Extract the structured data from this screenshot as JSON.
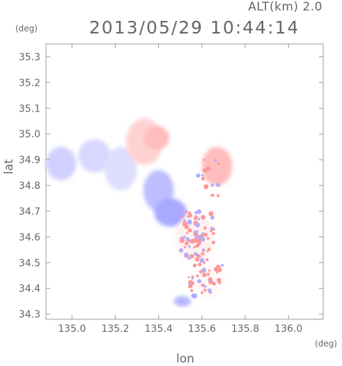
{
  "header": {
    "altitude_label": "ALT(km) 2.0",
    "datetime": "2013/05/29 10:44:14"
  },
  "axes": {
    "x_unit": "(deg)",
    "y_unit": "(deg)",
    "x_label": "lon",
    "y_label": "lat"
  },
  "chart_data": {
    "type": "heatmap",
    "title": "2013/05/29 10:44:14",
    "subtitle": "ALT(km) 2.0",
    "xlabel": "lon",
    "ylabel": "lat",
    "x_unit": "(deg)",
    "y_unit": "(deg)",
    "xlim": [
      134.88,
      136.16
    ],
    "ylim": [
      34.28,
      35.35
    ],
    "x_ticks": [
      135.0,
      135.2,
      135.4,
      135.6,
      135.8,
      136.0
    ],
    "x_tick_labels": [
      "135.0",
      "135.2",
      "135.4",
      "135.6",
      "135.8",
      "136.0"
    ],
    "y_ticks": [
      34.3,
      34.4,
      34.5,
      34.6,
      34.7,
      34.8,
      34.9,
      35.0,
      35.1,
      35.2,
      35.3
    ],
    "y_tick_labels": [
      "34.3",
      "34.4",
      "34.5",
      "34.6",
      "34.7",
      "34.8",
      "34.9",
      "35.0",
      "35.1",
      "35.2",
      "35.3"
    ],
    "colormap": {
      "negative": "#7a7aff",
      "zero": "#ffffff",
      "positive": "#ff6a6a"
    },
    "regions": [
      {
        "lon": [
          134.88,
          135.02
        ],
        "lat": [
          34.82,
          34.95
        ],
        "value": -0.35
      },
      {
        "lon": [
          135.03,
          135.18
        ],
        "lat": [
          34.85,
          34.98
        ],
        "value": -0.3
      },
      {
        "lon": [
          135.15,
          135.3
        ],
        "lat": [
          34.78,
          34.95
        ],
        "value": -0.25
      },
      {
        "lon": [
          135.25,
          135.42
        ],
        "lat": [
          34.88,
          35.06
        ],
        "value": 0.3
      },
      {
        "lon": [
          135.33,
          135.45
        ],
        "lat": [
          34.94,
          35.03
        ],
        "value": 0.45
      },
      {
        "lon": [
          135.33,
          135.47
        ],
        "lat": [
          34.7,
          34.86
        ],
        "value": -0.5
      },
      {
        "lon": [
          135.38,
          135.53
        ],
        "lat": [
          34.64,
          34.75
        ],
        "value": -0.65
      },
      {
        "lon": [
          135.6,
          135.74
        ],
        "lat": [
          34.8,
          34.95
        ],
        "value": 0.45
      },
      {
        "lon": [
          135.48,
          135.65
        ],
        "lat": [
          34.5,
          34.69
        ],
        "value": 0.1
      },
      {
        "lon": [
          135.56,
          135.7
        ],
        "lat": [
          34.36,
          34.5
        ],
        "value": 0.05
      },
      {
        "lon": [
          135.47,
          135.55
        ],
        "lat": [
          34.33,
          34.37
        ],
        "value": -0.55
      }
    ]
  }
}
